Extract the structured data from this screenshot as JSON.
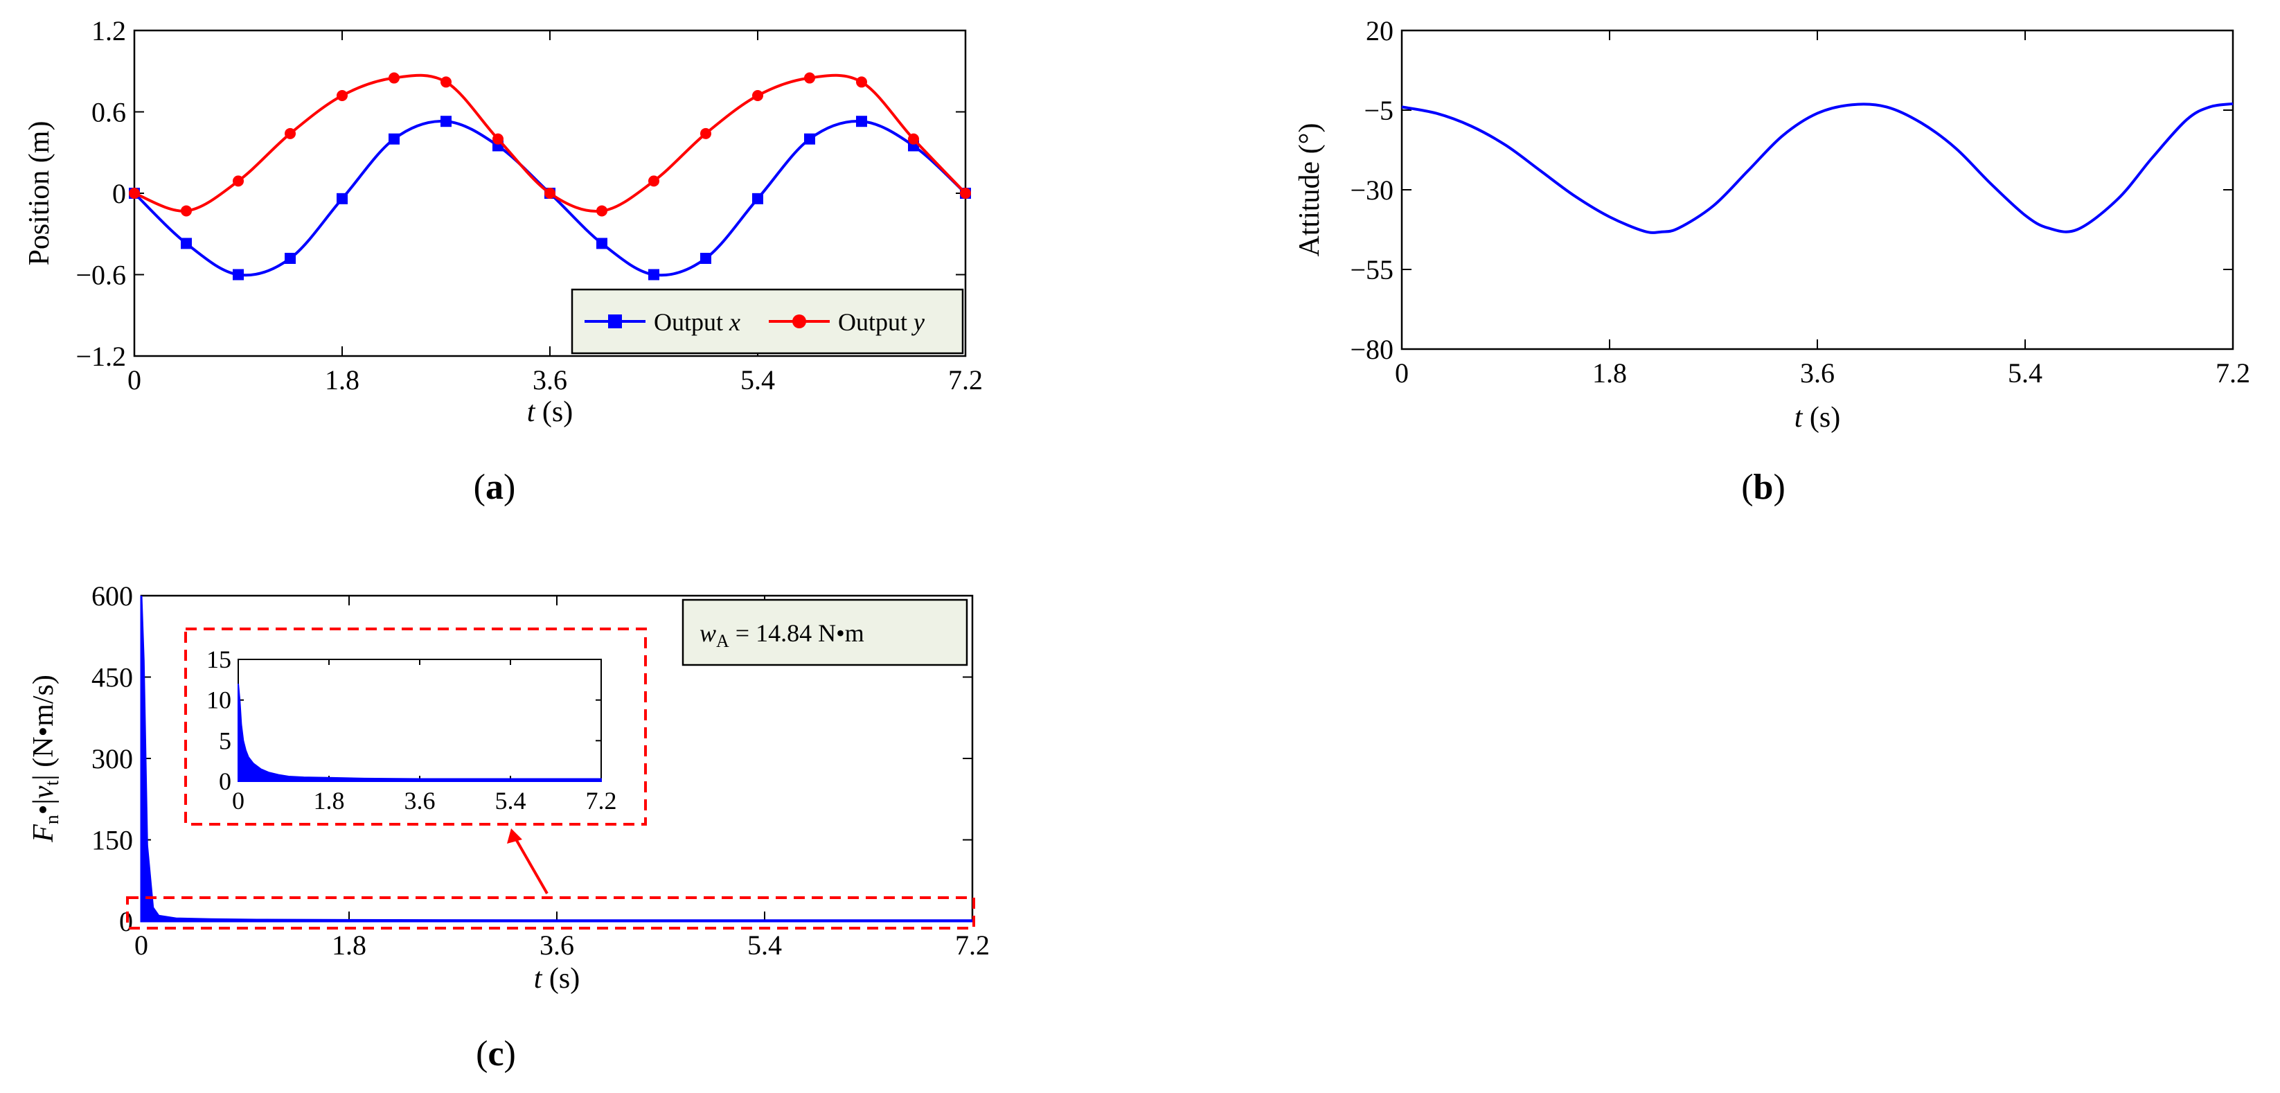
{
  "chart_data": [
    {
      "type": "line",
      "panel_label": "a",
      "xlabel_var": "t",
      "xlabel_unit": " (s)",
      "ylabel": "Position (m)",
      "xlim": [
        0,
        7.2
      ],
      "ylim": [
        -1.2,
        1.2
      ],
      "xticks": [
        0,
        1.8,
        3.6,
        5.4,
        7.2
      ],
      "xtick_labels": [
        "0",
        "1.8",
        "3.6",
        "5.4",
        "7.2"
      ],
      "yticks": [
        -1.2,
        -0.6,
        0,
        0.6,
        1.2
      ],
      "ytick_labels": [
        "−1.2",
        "−0.6",
        "0",
        "0.6",
        "1.2"
      ],
      "legend": {
        "position": "bottom-right",
        "entries": [
          {
            "text": "Output ",
            "var": "x"
          },
          {
            "text": "Output ",
            "var": "y"
          }
        ]
      },
      "series": [
        {
          "name": "Output x",
          "color": "#0000ff",
          "marker": "square",
          "x": [
            0,
            0.45,
            0.9,
            1.35,
            1.8,
            2.25,
            2.7,
            3.15,
            3.6,
            4.05,
            4.5,
            4.95,
            5.4,
            5.85,
            6.3,
            6.75,
            7.2
          ],
          "y": [
            0,
            -0.37,
            -0.6,
            -0.48,
            -0.04,
            0.4,
            0.53,
            0.35,
            0,
            -0.37,
            -0.6,
            -0.48,
            -0.04,
            0.4,
            0.53,
            0.35,
            0
          ]
        },
        {
          "name": "Output y",
          "color": "#ff0000",
          "marker": "circle",
          "x": [
            0,
            0.45,
            0.9,
            1.35,
            1.8,
            2.25,
            2.7,
            3.15,
            3.6,
            4.05,
            4.5,
            4.95,
            5.4,
            5.85,
            6.3,
            6.75,
            7.2
          ],
          "y": [
            0,
            -0.13,
            0.09,
            0.44,
            0.72,
            0.85,
            0.82,
            0.4,
            0,
            -0.13,
            0.09,
            0.44,
            0.72,
            0.85,
            0.82,
            0.4,
            0
          ]
        }
      ]
    },
    {
      "type": "line",
      "panel_label": "b",
      "xlabel_var": "t",
      "xlabel_unit": " (s)",
      "ylabel": "Attitude (°)",
      "xlim": [
        0,
        7.2
      ],
      "ylim": [
        -80,
        20
      ],
      "xticks": [
        0,
        1.8,
        3.6,
        5.4,
        7.2
      ],
      "xtick_labels": [
        "0",
        "1.8",
        "3.6",
        "5.4",
        "7.2"
      ],
      "yticks": [
        -80,
        -55,
        -30,
        -5,
        20
      ],
      "ytick_labels": [
        "−80",
        "−55",
        "−30",
        "−5",
        "20"
      ],
      "series": [
        {
          "name": "Attitude",
          "color": "#0000ff",
          "x": [
            0,
            0.3,
            0.6,
            0.9,
            1.2,
            1.5,
            1.8,
            2.1,
            2.25,
            2.4,
            2.7,
            3.0,
            3.3,
            3.6,
            3.9,
            4.2,
            4.5,
            4.8,
            5.1,
            5.4,
            5.6,
            5.85,
            6.2,
            6.5,
            6.8,
            7.0,
            7.2
          ],
          "y": [
            -4,
            -6,
            -10,
            -16,
            -24,
            -32,
            -38.5,
            -43,
            -43.2,
            -42,
            -35,
            -24,
            -13,
            -6,
            -3.3,
            -4,
            -9,
            -17,
            -28,
            -38,
            -42,
            -42.5,
            -33,
            -20,
            -8,
            -4,
            -3
          ]
        }
      ]
    },
    {
      "type": "area",
      "panel_label": "c",
      "xlabel_var": "t",
      "xlabel_unit": " (s)",
      "ylabel_parts": {
        "F": "F",
        "n": "n",
        "mid": "•|",
        "v": "v",
        "t": "t",
        "unit": "| (N•m/s)"
      },
      "xlim": [
        0,
        7.2
      ],
      "ylim": [
        0,
        600
      ],
      "xticks": [
        0,
        1.8,
        3.6,
        5.4,
        7.2
      ],
      "xtick_labels": [
        "0",
        "1.8",
        "3.6",
        "5.4",
        "7.2"
      ],
      "yticks": [
        0,
        150,
        300,
        450,
        600
      ],
      "ytick_labels": [
        "0",
        "150",
        "300",
        "450",
        "600"
      ],
      "annotation": {
        "w": "w",
        "sub": "A",
        "value": " = 14.84 N•m"
      },
      "series": [
        {
          "name": "Fn•|vt|",
          "color": "#0000ff",
          "x": [
            0,
            0.02,
            0.05,
            0.1,
            0.15,
            0.3,
            0.6,
            1.0,
            1.8,
            3.6,
            5.4,
            7.2
          ],
          "y": [
            600,
            480,
            140,
            25,
            10,
            5,
            3.5,
            2.5,
            2,
            1.5,
            1.5,
            1.5
          ]
        }
      ],
      "inset": {
        "xlim": [
          0,
          7.2
        ],
        "ylim": [
          0,
          15
        ],
        "xticks": [
          0,
          1.8,
          3.6,
          5.4,
          7.2
        ],
        "xtick_labels": [
          "0",
          "1.8",
          "3.6",
          "5.4",
          "7.2"
        ],
        "yticks": [
          0,
          5,
          10,
          15
        ],
        "ytick_labels": [
          "0",
          "5",
          "10",
          "15"
        ],
        "x": [
          0,
          0.03,
          0.06,
          0.1,
          0.15,
          0.2,
          0.3,
          0.45,
          0.6,
          0.8,
          1.0,
          1.3,
          1.8,
          2.5,
          3.6,
          4.5,
          5.4,
          6.3,
          7.2
        ],
        "y": [
          12,
          10,
          7,
          5,
          3.8,
          3,
          2.2,
          1.5,
          1.1,
          0.8,
          0.6,
          0.5,
          0.45,
          0.35,
          0.3,
          0.3,
          0.3,
          0.3,
          0.3
        ]
      }
    }
  ]
}
